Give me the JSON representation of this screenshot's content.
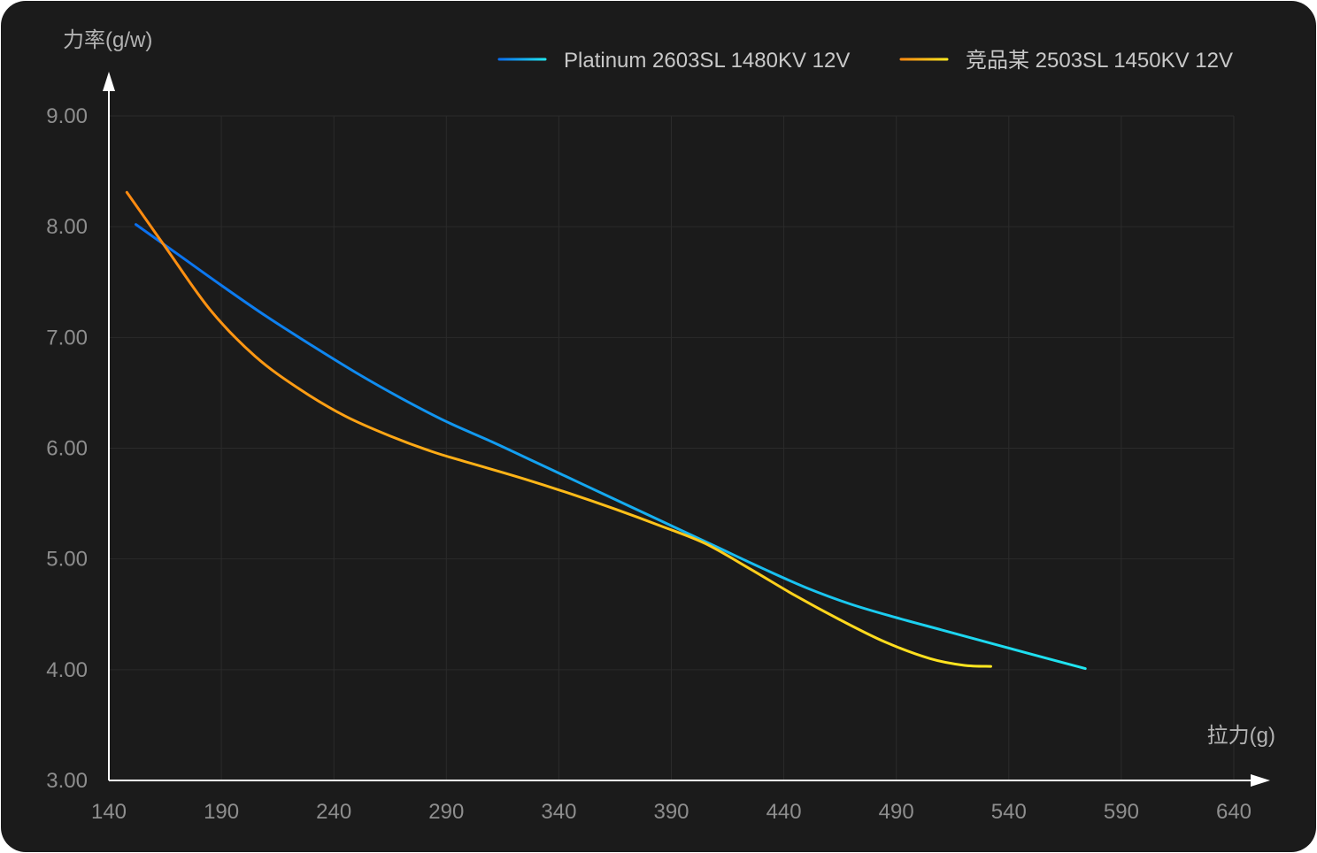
{
  "chart_data": {
    "type": "line",
    "xlabel": "拉力(g)",
    "ylabel": "力率(g/w)",
    "xlim": [
      140,
      640
    ],
    "ylim": [
      3.0,
      9.0
    ],
    "x_ticks": [
      "140",
      "190",
      "240",
      "290",
      "340",
      "390",
      "440",
      "490",
      "540",
      "590",
      "640"
    ],
    "y_ticks": [
      "3.00",
      "4.00",
      "5.00",
      "6.00",
      "7.00",
      "8.00",
      "9.00"
    ],
    "grid": true,
    "legend_position": "top-right",
    "series": [
      {
        "name": "Platinum 2603SL 1480KV 12V",
        "color_start": "#0a6ff0",
        "color_end": "#20e6f0",
        "x": [
          152,
          170,
          190,
          210,
          230,
          250,
          270,
          290,
          310,
          330,
          350,
          370,
          390,
          410,
          430,
          450,
          470,
          490,
          510,
          530,
          550,
          574
        ],
        "y": [
          8.02,
          7.76,
          7.47,
          7.19,
          6.93,
          6.68,
          6.45,
          6.24,
          6.06,
          5.87,
          5.68,
          5.49,
          5.3,
          5.11,
          4.92,
          4.74,
          4.59,
          4.47,
          4.36,
          4.25,
          4.14,
          4.01
        ]
      },
      {
        "name": "竞品某 2503SL 1450KV 12V",
        "color_start": "#ff8a10",
        "color_end": "#ffe820",
        "x": [
          148,
          165,
          185,
          205,
          225,
          245,
          265,
          285,
          305,
          325,
          345,
          365,
          385,
          405,
          425,
          445,
          465,
          485,
          505,
          520,
          532
        ],
        "y": [
          8.31,
          7.82,
          7.25,
          6.83,
          6.53,
          6.29,
          6.11,
          5.96,
          5.84,
          5.72,
          5.59,
          5.45,
          5.3,
          5.14,
          4.91,
          4.67,
          4.45,
          4.25,
          4.1,
          4.04,
          4.03
        ]
      }
    ]
  }
}
